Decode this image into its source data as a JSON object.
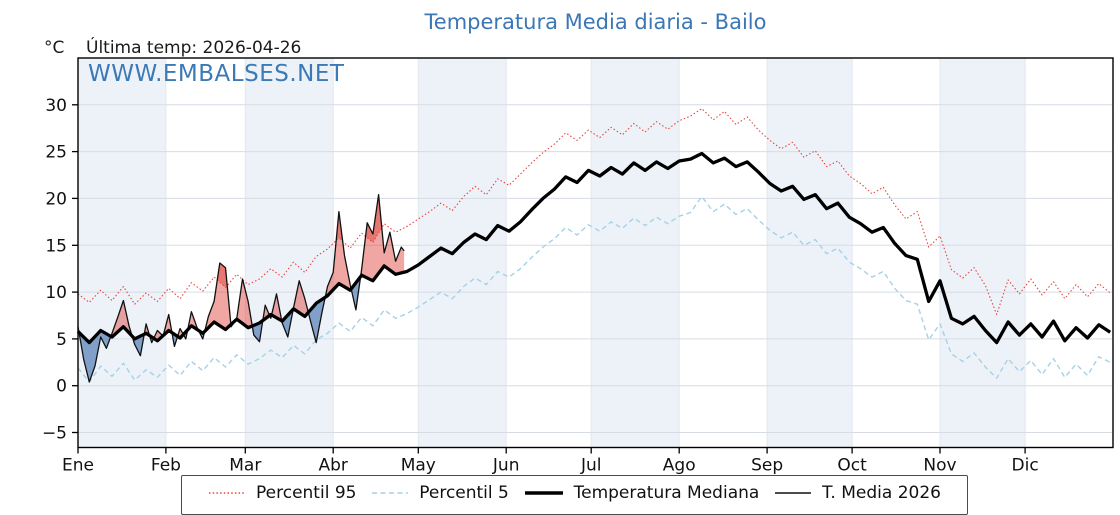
{
  "header": {
    "title": "Temperatura Media diaria - Bailo",
    "unit_label": "°C",
    "last_temp_label": "Última temp: 2026-04-26",
    "watermark": "WWW.EMBALSES.NET"
  },
  "legend": {
    "items": [
      {
        "label": "Percentil 95",
        "swatch": "dotted-red-line"
      },
      {
        "label": "Percentil 5",
        "swatch": "dashed-lightblue-line"
      },
      {
        "label": "Temperatura Mediana",
        "swatch": "thick-black-line"
      },
      {
        "label": "T. Media 2026",
        "swatch": "thin-black-line"
      }
    ]
  },
  "axes": {
    "y_tick_labels": [
      "−5",
      "0",
      "5",
      "10",
      "15",
      "20",
      "25",
      "30"
    ],
    "x_tick_labels": [
      "Ene",
      "Feb",
      "Mar",
      "Abr",
      "May",
      "Jun",
      "Jul",
      "Ago",
      "Sep",
      "Oct",
      "Nov",
      "Dic"
    ]
  },
  "colors": {
    "title_blue": "#3b77b4",
    "watermark_blue": "#3c7ab5",
    "p95_red": "#e8453c",
    "p5_lightblue": "#a6d1e6",
    "median_black": "#000000",
    "t2026_black": "#111111",
    "fill_red": "rgba(224,70,60,0.48)",
    "fill_blue": "rgba(55,105,168,0.60)",
    "month_band": "#edf2f9",
    "h_grid": "#d7dce4",
    "v_grid": "#e3e7ee",
    "axis": "#000000"
  },
  "chart_data": {
    "type": "line",
    "title": "Temperatura Media diaria - Bailo",
    "xlabel": "",
    "ylabel": "°C",
    "x_unit": "day_of_year",
    "ylim": [
      -6.6,
      35.0
    ],
    "xlim_days": [
      1,
      366
    ],
    "grid": true,
    "legend_position": "bottom",
    "y_ticks": [
      -5,
      0,
      5,
      10,
      15,
      20,
      25,
      30
    ],
    "month_start_days": [
      1,
      32,
      60,
      91,
      121,
      152,
      182,
      213,
      244,
      274,
      305,
      335,
      366
    ],
    "month_labels": [
      "Ene",
      "Feb",
      "Mar",
      "Abr",
      "May",
      "Jun",
      "Jul",
      "Ago",
      "Sep",
      "Oct",
      "Nov",
      "Dic"
    ],
    "series": [
      {
        "name": "Percentil 95",
        "style": "dotted",
        "day_start": 1,
        "day_step": 4,
        "values": [
          9.8,
          8.9,
          10.2,
          9.1,
          10.6,
          8.7,
          9.9,
          9.0,
          10.4,
          9.3,
          11.0,
          10.1,
          11.6,
          10.5,
          11.9,
          10.8,
          11.4,
          12.5,
          11.6,
          13.2,
          12.1,
          13.8,
          14.6,
          15.8,
          14.7,
          16.3,
          15.3,
          17.3,
          16.4,
          17.0,
          17.8,
          18.6,
          19.5,
          18.7,
          20.2,
          21.3,
          20.4,
          22.1,
          21.4,
          22.6,
          23.8,
          24.9,
          25.8,
          27.0,
          26.2,
          27.3,
          26.5,
          27.6,
          26.8,
          28.0,
          27.1,
          28.2,
          27.4,
          28.3,
          28.8,
          29.6,
          28.4,
          29.3,
          27.9,
          28.7,
          27.3,
          26.2,
          25.3,
          26.0,
          24.4,
          25.1,
          23.4,
          24.0,
          22.4,
          21.6,
          20.5,
          21.2,
          19.3,
          17.8,
          18.6,
          14.8,
          16.0,
          12.4,
          11.5,
          12.6,
          10.7,
          7.6,
          11.3,
          9.8,
          11.4,
          9.7,
          11.1,
          9.3,
          10.8,
          9.5,
          10.9,
          9.9
        ]
      },
      {
        "name": "Percentil 5",
        "style": "dashed",
        "day_start": 1,
        "day_step": 4,
        "values": [
          1.9,
          0.4,
          2.1,
          1.0,
          2.4,
          0.6,
          1.7,
          0.9,
          2.2,
          1.1,
          2.6,
          1.6,
          3.0,
          2.0,
          3.3,
          2.3,
          2.9,
          3.8,
          3.0,
          4.3,
          3.4,
          4.9,
          5.6,
          6.7,
          5.8,
          7.3,
          6.4,
          8.1,
          7.2,
          7.7,
          8.4,
          9.2,
          10.0,
          9.3,
          10.6,
          11.5,
          10.8,
          12.2,
          11.6,
          12.5,
          13.7,
          14.8,
          15.7,
          16.9,
          16.1,
          17.2,
          16.5,
          17.5,
          16.8,
          17.9,
          17.1,
          18.0,
          17.3,
          18.1,
          18.5,
          20.2,
          18.6,
          19.4,
          18.3,
          18.9,
          17.7,
          16.6,
          15.8,
          16.4,
          15.0,
          15.6,
          14.1,
          14.7,
          13.2,
          12.5,
          11.6,
          12.2,
          10.4,
          9.1,
          8.7,
          4.9,
          6.6,
          3.4,
          2.6,
          3.5,
          2.0,
          0.8,
          2.9,
          1.5,
          2.7,
          1.2,
          2.9,
          0.9,
          2.3,
          1.1,
          3.1,
          2.5
        ]
      },
      {
        "name": "Temperatura Mediana",
        "style": "solid-thick",
        "day_start": 1,
        "day_step": 4,
        "values": [
          5.8,
          4.6,
          5.9,
          5.2,
          6.3,
          5.0,
          5.6,
          4.8,
          5.9,
          5.1,
          6.4,
          5.6,
          6.8,
          6.0,
          7.1,
          6.2,
          6.7,
          7.6,
          6.9,
          8.2,
          7.4,
          8.8,
          9.6,
          10.9,
          10.2,
          11.8,
          11.2,
          12.8,
          11.9,
          12.2,
          12.9,
          13.8,
          14.7,
          14.1,
          15.3,
          16.2,
          15.6,
          17.1,
          16.5,
          17.5,
          18.8,
          20.0,
          21.0,
          22.3,
          21.7,
          23.0,
          22.4,
          23.3,
          22.6,
          23.8,
          23.0,
          23.9,
          23.2,
          24.0,
          24.2,
          24.8,
          23.8,
          24.3,
          23.4,
          23.9,
          22.8,
          21.6,
          20.8,
          21.3,
          19.9,
          20.4,
          18.9,
          19.5,
          18.0,
          17.3,
          16.4,
          16.9,
          15.2,
          13.9,
          13.5,
          9.0,
          11.2,
          7.2,
          6.6,
          7.4,
          5.9,
          4.6,
          6.8,
          5.4,
          6.6,
          5.2,
          6.9,
          4.8,
          6.2,
          5.1,
          6.5,
          5.7
        ]
      },
      {
        "name": "T. Media 2026",
        "style": "solid-thin",
        "days": [
          1,
          3,
          5,
          7,
          9,
          11,
          13,
          15,
          17,
          19,
          21,
          23,
          25,
          27,
          29,
          31,
          33,
          35,
          37,
          39,
          41,
          43,
          45,
          47,
          49,
          51,
          53,
          55,
          57,
          59,
          61,
          63,
          65,
          67,
          69,
          71,
          73,
          75,
          77,
          79,
          81,
          83,
          85,
          87,
          89,
          91,
          93,
          95,
          97,
          99,
          101,
          103,
          105,
          107,
          109,
          111,
          113,
          115,
          116
        ],
        "values": [
          6.3,
          2.8,
          0.4,
          2.1,
          5.2,
          4.0,
          5.6,
          7.3,
          9.1,
          6.4,
          4.4,
          3.2,
          6.6,
          4.6,
          5.9,
          5.3,
          7.6,
          4.2,
          6.1,
          5.0,
          7.9,
          6.2,
          5.0,
          7.4,
          9.0,
          13.1,
          12.6,
          6.3,
          7.2,
          11.4,
          9.0,
          5.4,
          4.7,
          8.6,
          7.2,
          9.8,
          6.7,
          5.2,
          8.3,
          11.2,
          9.3,
          6.9,
          4.6,
          7.8,
          10.6,
          12.1,
          18.6,
          13.9,
          10.8,
          8.1,
          12.4,
          17.4,
          16.2,
          20.4,
          14.2,
          16.4,
          13.3,
          14.8,
          14.4
        ]
      }
    ],
    "fills": [
      {
        "between": [
          "T. Media 2026",
          "Temperatura Mediana"
        ],
        "where": "above",
        "color_key": "fill_red"
      },
      {
        "between": [
          "T. Media 2026",
          "Percentil 95"
        ],
        "where": "above",
        "color_key": "fill_red"
      },
      {
        "between": [
          "T. Media 2026",
          "Temperatura Mediana"
        ],
        "where": "below",
        "color_key": "fill_blue"
      },
      {
        "between": [
          "T. Media 2026",
          "Percentil 5"
        ],
        "where": "below",
        "color_key": "fill_blue"
      }
    ]
  }
}
